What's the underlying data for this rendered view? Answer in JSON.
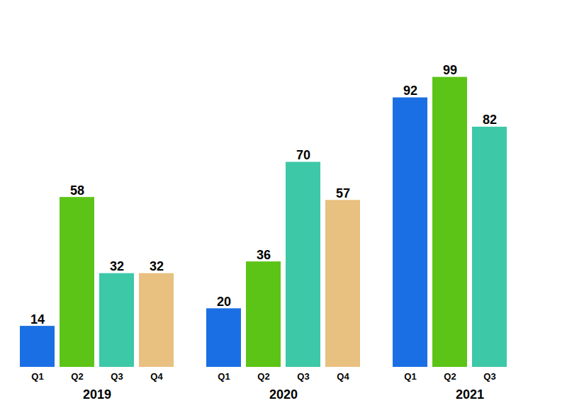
{
  "chart_data": {
    "type": "bar",
    "groups": [
      {
        "name": "2019",
        "categories": [
          "Q1",
          "Q2",
          "Q3",
          "Q4"
        ],
        "values": [
          14,
          58,
          32,
          32
        ],
        "colors": [
          "#1B6FE4",
          "#5CC416",
          "#3DC8A8",
          "#E8C080"
        ]
      },
      {
        "name": "2020",
        "categories": [
          "Q1",
          "Q2",
          "Q3",
          "Q4"
        ],
        "values": [
          20,
          36,
          70,
          57
        ],
        "colors": [
          "#1B6FE4",
          "#5CC416",
          "#3DC8A8",
          "#E8C080"
        ]
      },
      {
        "name": "2021",
        "categories": [
          "Q1",
          "Q2",
          "Q3"
        ],
        "values": [
          92,
          99,
          82
        ],
        "colors": [
          "#1B6FE4",
          "#5CC416",
          "#3DC8A8"
        ]
      }
    ],
    "ylim": [
      0,
      118
    ],
    "yticks": [],
    "data_labels": true
  }
}
